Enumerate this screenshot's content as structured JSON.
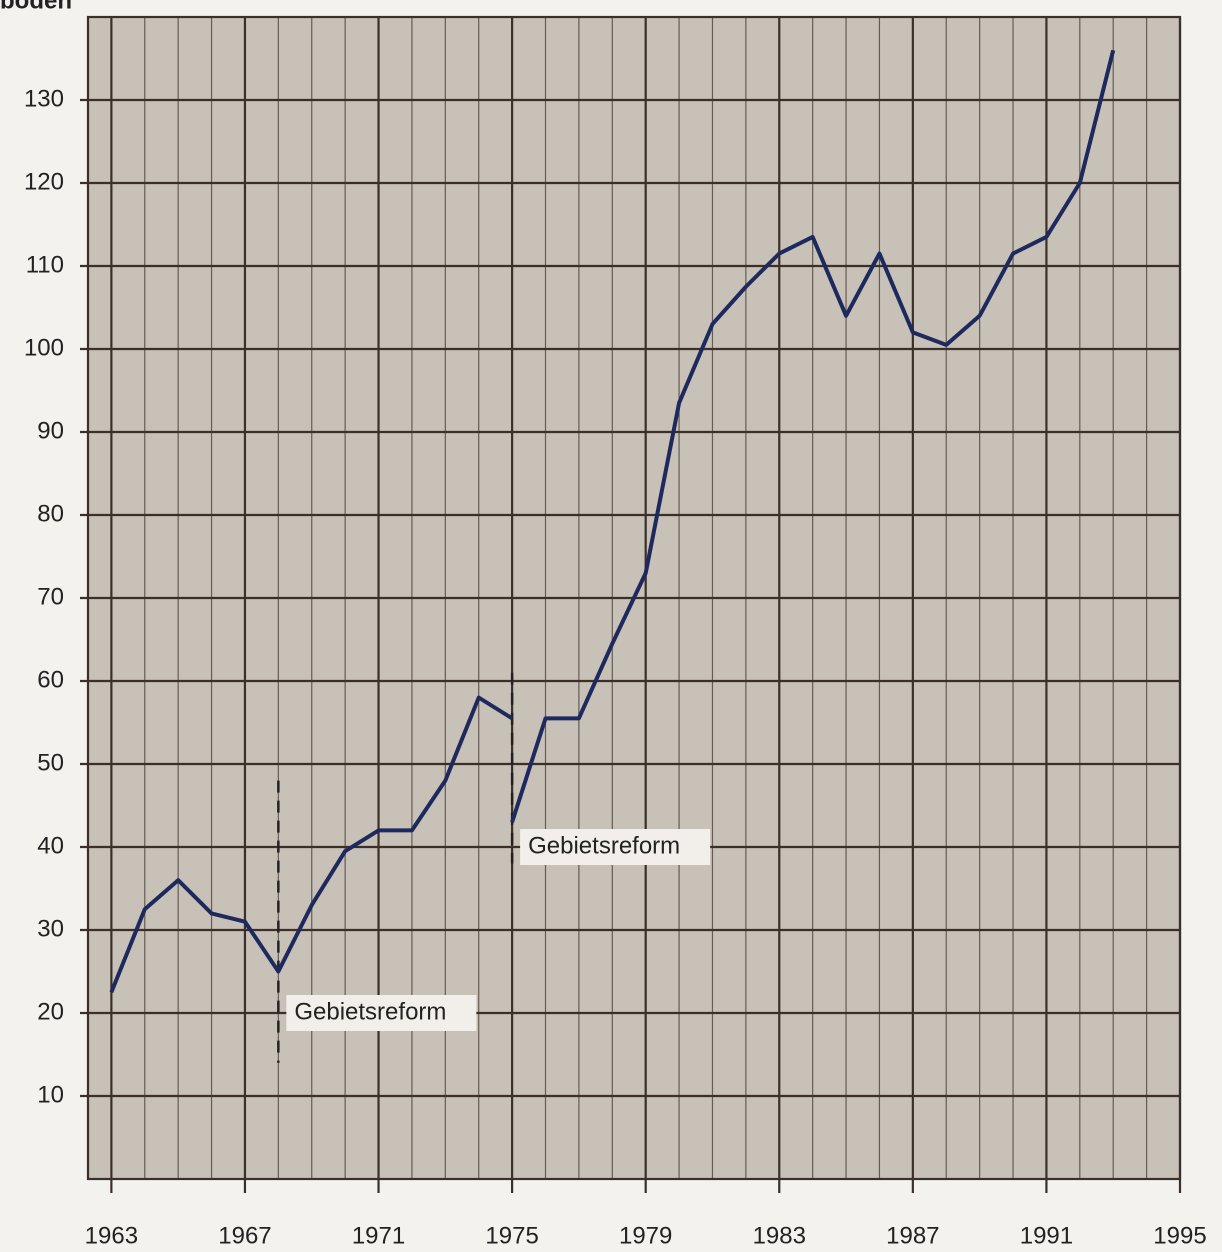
{
  "chart_data": {
    "type": "line",
    "y_label": "boden",
    "x": [
      1963,
      1964,
      1965,
      1966,
      1967,
      1968,
      1969,
      1970,
      1971,
      1972,
      1973,
      1974,
      1975,
      1975,
      1975,
      1976,
      1977,
      1978,
      1979,
      1980,
      1981,
      1982,
      1983,
      1984,
      1985,
      1986,
      1987,
      1988,
      1989,
      1990,
      1991,
      1992,
      1993
    ],
    "series": [
      {
        "color": "#1e2a5e",
        "values": [
          22.5,
          32.5,
          36,
          32,
          31,
          25,
          33,
          39.5,
          42,
          42,
          48,
          58,
          55.5,
          null,
          43,
          55.5,
          55.5,
          64.5,
          73,
          93.5,
          103,
          107.5,
          111.5,
          113.5,
          104,
          111.5,
          102,
          100.5,
          104,
          111.5,
          113.5,
          120,
          136
        ]
      }
    ],
    "annotations": [
      {
        "text": "Gebietsreform",
        "x": 1968
      },
      {
        "text": "Gebietsreform",
        "x": 1975
      }
    ],
    "xlim": [
      1962.3,
      1995
    ],
    "xticks": [
      1963,
      1967,
      1971,
      1975,
      1979,
      1983,
      1987,
      1991,
      1995
    ],
    "ylim": [
      0,
      140
    ],
    "yticks": [
      10,
      20,
      30,
      40,
      50,
      60,
      70,
      80,
      90,
      100,
      110,
      120,
      130
    ],
    "grid": true
  }
}
